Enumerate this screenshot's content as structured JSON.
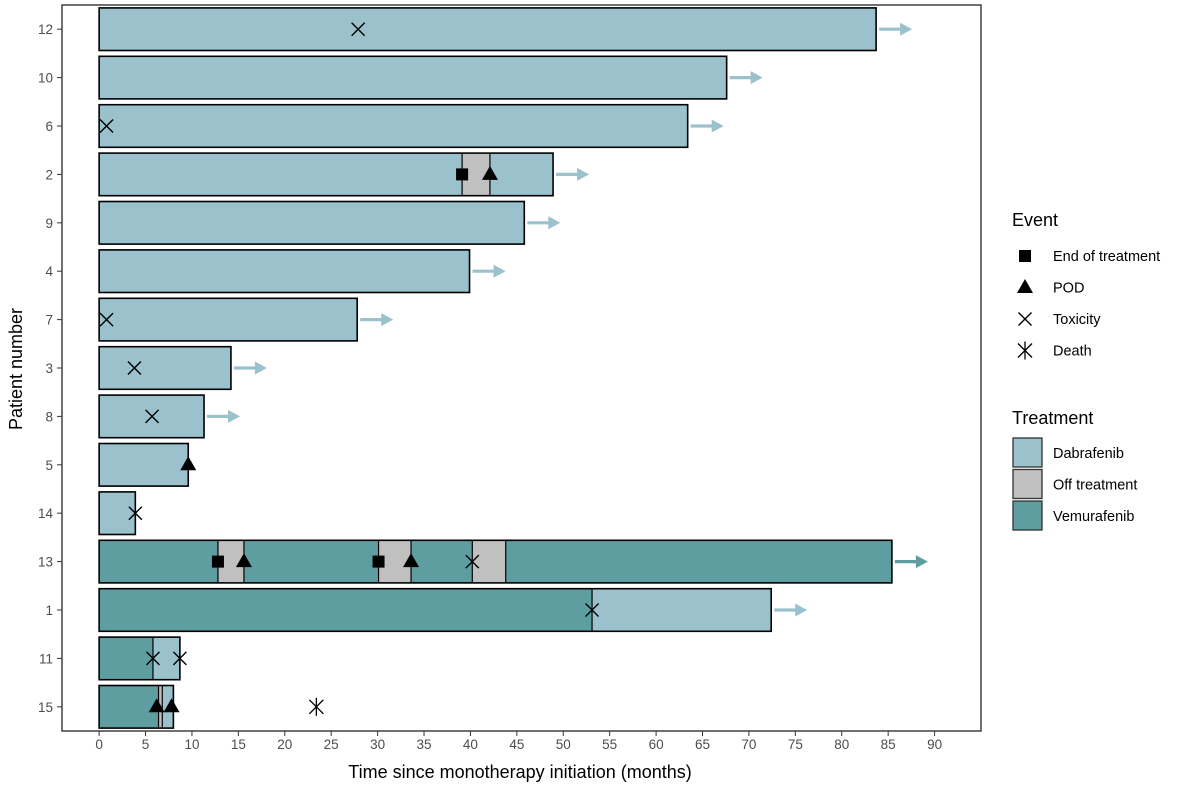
{
  "chart_data": {
    "type": "swimmer",
    "title": "",
    "xlabel": "Time since monotherapy initiation (months)",
    "ylabel": "Patient number",
    "xlim": [
      -4,
      95
    ],
    "xticks": [
      0,
      5,
      10,
      15,
      20,
      25,
      30,
      35,
      40,
      45,
      50,
      55,
      60,
      65,
      70,
      75,
      80,
      85,
      90
    ],
    "grid": false,
    "colors": {
      "Dabrafenib": "#9bc1cd",
      "Off treatment": "#c0c0c0",
      "Vemurafenib": "#5f9ea0"
    },
    "patients": [
      {
        "id": "12",
        "segments": [
          {
            "treatment": "Dabrafenib",
            "start": 0,
            "end": 83.7
          }
        ],
        "ongoing": true,
        "events": [
          {
            "type": "Toxicity",
            "time": 27.9
          }
        ]
      },
      {
        "id": "10",
        "segments": [
          {
            "treatment": "Dabrafenib",
            "start": 0,
            "end": 67.6
          }
        ],
        "ongoing": true,
        "events": []
      },
      {
        "id": "6",
        "segments": [
          {
            "treatment": "Dabrafenib",
            "start": 0,
            "end": 63.4
          }
        ],
        "ongoing": true,
        "events": [
          {
            "type": "Toxicity",
            "time": 0.8
          }
        ]
      },
      {
        "id": "2",
        "segments": [
          {
            "treatment": "Dabrafenib",
            "start": 0,
            "end": 39.1
          },
          {
            "treatment": "Off treatment",
            "start": 39.1,
            "end": 42.1
          },
          {
            "treatment": "Dabrafenib",
            "start": 42.1,
            "end": 48.9
          }
        ],
        "ongoing": true,
        "events": [
          {
            "type": "End of treatment",
            "time": 39.1
          },
          {
            "type": "POD",
            "time": 42.1
          }
        ]
      },
      {
        "id": "9",
        "segments": [
          {
            "treatment": "Dabrafenib",
            "start": 0,
            "end": 45.8
          }
        ],
        "ongoing": true,
        "events": []
      },
      {
        "id": "4",
        "segments": [
          {
            "treatment": "Dabrafenib",
            "start": 0,
            "end": 39.9
          }
        ],
        "ongoing": true,
        "events": []
      },
      {
        "id": "7",
        "segments": [
          {
            "treatment": "Dabrafenib",
            "start": 0,
            "end": 27.8
          }
        ],
        "ongoing": true,
        "events": [
          {
            "type": "Toxicity",
            "time": 0.8
          }
        ]
      },
      {
        "id": "3",
        "segments": [
          {
            "treatment": "Dabrafenib",
            "start": 0,
            "end": 14.2
          }
        ],
        "ongoing": true,
        "events": [
          {
            "type": "Toxicity",
            "time": 3.8
          }
        ]
      },
      {
        "id": "8",
        "segments": [
          {
            "treatment": "Dabrafenib",
            "start": 0,
            "end": 11.3
          }
        ],
        "ongoing": true,
        "events": [
          {
            "type": "Toxicity",
            "time": 5.7
          }
        ]
      },
      {
        "id": "5",
        "segments": [
          {
            "treatment": "Dabrafenib",
            "start": 0,
            "end": 9.6
          }
        ],
        "ongoing": false,
        "events": [
          {
            "type": "POD",
            "time": 9.6
          }
        ]
      },
      {
        "id": "14",
        "segments": [
          {
            "treatment": "Dabrafenib",
            "start": 0,
            "end": 3.9
          }
        ],
        "ongoing": false,
        "events": [
          {
            "type": "Toxicity",
            "time": 3.9
          }
        ]
      },
      {
        "id": "13",
        "segments": [
          {
            "treatment": "Vemurafenib",
            "start": 0,
            "end": 12.8
          },
          {
            "treatment": "Off treatment",
            "start": 12.8,
            "end": 15.6
          },
          {
            "treatment": "Vemurafenib",
            "start": 15.6,
            "end": 30.1
          },
          {
            "treatment": "Off treatment",
            "start": 30.1,
            "end": 33.6
          },
          {
            "treatment": "Vemurafenib",
            "start": 33.6,
            "end": 40.2
          },
          {
            "treatment": "Off treatment",
            "start": 40.2,
            "end": 43.8
          },
          {
            "treatment": "Vemurafenib",
            "start": 43.8,
            "end": 85.4
          }
        ],
        "ongoing": true,
        "events": [
          {
            "type": "End of treatment",
            "time": 12.8
          },
          {
            "type": "POD",
            "time": 15.6
          },
          {
            "type": "End of treatment",
            "time": 30.1
          },
          {
            "type": "POD",
            "time": 33.6
          },
          {
            "type": "Toxicity",
            "time": 40.2
          }
        ]
      },
      {
        "id": "1",
        "segments": [
          {
            "treatment": "Vemurafenib",
            "start": 0,
            "end": 53.1
          },
          {
            "treatment": "Dabrafenib",
            "start": 53.1,
            "end": 72.4
          }
        ],
        "ongoing": true,
        "events": [
          {
            "type": "Toxicity",
            "time": 53.1
          }
        ]
      },
      {
        "id": "11",
        "segments": [
          {
            "treatment": "Vemurafenib",
            "start": 0,
            "end": 5.8
          },
          {
            "treatment": "Dabrafenib",
            "start": 5.8,
            "end": 8.7
          }
        ],
        "ongoing": false,
        "events": [
          {
            "type": "Toxicity",
            "time": 5.8
          },
          {
            "type": "Toxicity",
            "time": 8.7
          }
        ]
      },
      {
        "id": "15",
        "segments": [
          {
            "treatment": "Vemurafenib",
            "start": 0,
            "end": 6.4
          },
          {
            "treatment": "Off treatment",
            "start": 6.4,
            "end": 6.8
          },
          {
            "treatment": "Dabrafenib",
            "start": 6.8,
            "end": 8.0
          }
        ],
        "ongoing": false,
        "events": [
          {
            "type": "POD",
            "time": 6.2
          },
          {
            "type": "POD",
            "time": 7.8
          },
          {
            "type": "Death",
            "time": 23.4
          }
        ]
      }
    ],
    "legend": {
      "position": "right",
      "event_title": "Event",
      "events": [
        {
          "type": "End of treatment",
          "label": "End of treatment",
          "symbol": "square-icon"
        },
        {
          "type": "POD",
          "label": "POD",
          "symbol": "triangle-icon"
        },
        {
          "type": "Toxicity",
          "label": "Toxicity",
          "symbol": "cross-icon"
        },
        {
          "type": "Death",
          "label": "Death",
          "symbol": "asterisk-icon"
        }
      ],
      "treatment_title": "Treatment",
      "treatments": [
        {
          "label": "Dabrafenib"
        },
        {
          "label": "Off treatment"
        },
        {
          "label": "Vemurafenib"
        }
      ]
    }
  }
}
